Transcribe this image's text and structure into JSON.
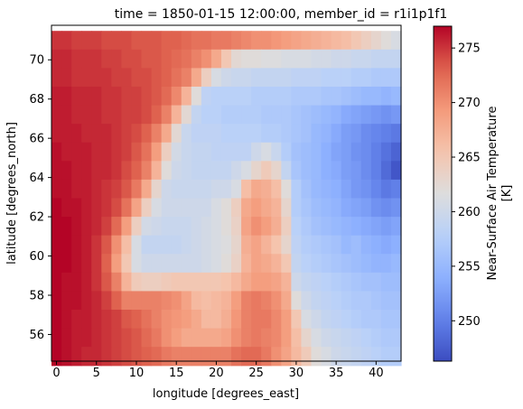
{
  "chart_data": {
    "type": "heatmap",
    "title": "time = 1850-01-15 12:00:00, member_id = r1i1p1f1",
    "xlabel": "longitude [degrees_east]",
    "ylabel": "latitude [degrees_north]",
    "colorbar_label": "Near-Surface Air Temperature\n[K]",
    "colormap": "coolwarm",
    "colorbar_ticks": [
      250,
      255,
      260,
      265,
      270,
      275
    ],
    "xticks": [
      0,
      5,
      10,
      15,
      20,
      25,
      30,
      35,
      40
    ],
    "yticks": [
      56,
      58,
      60,
      62,
      64,
      66,
      68,
      70
    ],
    "x_grid": {
      "start": 0,
      "step": 1.25,
      "count": 35
    },
    "y_grid": {
      "start": 71.0,
      "step": -0.9474,
      "count": 18
    },
    "xlim": [
      -0.625,
      43.125
    ],
    "ylim": [
      54.64,
      71.76
    ],
    "vmin": 246.3,
    "vmax": 277.0,
    "values": [
      [
        275,
        275,
        274.5,
        274.5,
        274.5,
        274,
        274,
        274,
        273.5,
        273.5,
        273.5,
        273,
        273,
        272.5,
        272,
        272,
        271.5,
        271.5,
        271,
        270.5,
        270,
        270,
        269.5,
        269,
        268.5,
        268,
        267.5,
        267,
        266.5,
        266,
        265,
        264,
        263,
        262,
        261
      ],
      [
        275.5,
        275.5,
        275,
        275,
        275,
        274.5,
        274.5,
        274,
        274,
        273.5,
        273.5,
        273,
        272.5,
        272,
        271,
        270,
        268,
        265,
        262.5,
        262,
        262,
        261.5,
        261.5,
        261,
        261,
        261,
        260.5,
        260.5,
        260,
        260,
        259.5,
        259.5,
        259,
        259,
        259
      ],
      [
        275.5,
        275.5,
        275,
        275,
        275,
        275,
        274.5,
        274.5,
        274,
        274,
        273.5,
        273,
        272,
        271,
        268,
        264,
        261,
        260,
        259.5,
        259.5,
        259,
        259,
        259,
        259,
        258.5,
        258.5,
        258.5,
        258,
        258,
        258,
        257.5,
        257.5,
        257,
        257,
        257
      ],
      [
        276,
        276,
        275.5,
        275.5,
        275.5,
        275,
        275,
        274.5,
        274.5,
        274,
        273.5,
        272.5,
        270.5,
        267,
        262,
        258.5,
        258,
        258,
        258,
        258,
        257.5,
        257.5,
        257.5,
        257.5,
        257,
        257,
        257,
        256.5,
        256.5,
        256,
        255.5,
        255,
        255,
        254.5,
        255
      ],
      [
        276,
        276,
        275.5,
        275.5,
        275.5,
        275,
        275,
        274.5,
        274.5,
        274,
        273,
        271,
        267,
        262.5,
        259,
        258,
        258,
        257.5,
        257.5,
        257.5,
        257.5,
        257,
        257,
        257,
        256.5,
        256,
        255.5,
        255,
        254.5,
        253.5,
        253,
        252.5,
        252,
        251.5,
        252
      ],
      [
        276,
        276,
        276,
        275.5,
        275.5,
        275.5,
        275,
        274.5,
        274,
        273,
        271,
        268,
        262.5,
        259.5,
        258.5,
        258.5,
        258.5,
        258,
        258,
        258,
        258,
        257.5,
        257.5,
        257,
        256.5,
        256,
        255,
        254.5,
        253.5,
        252.5,
        252,
        251,
        250.5,
        250,
        249.5
      ],
      [
        276.5,
        276,
        276,
        276,
        275.5,
        275.5,
        275,
        274.5,
        273.5,
        272,
        269,
        264,
        260.5,
        259.5,
        259,
        259,
        258.5,
        258.5,
        258.5,
        258.5,
        260,
        261,
        259.5,
        257.5,
        256,
        255.5,
        255,
        254,
        253,
        252.5,
        251.5,
        251,
        250,
        249,
        248
      ],
      [
        276.5,
        276.5,
        276,
        276,
        275.5,
        275.5,
        275,
        274,
        273,
        271,
        267,
        262,
        260,
        259.5,
        259,
        259,
        259,
        259,
        260,
        261,
        263,
        264.5,
        263,
        259,
        256.5,
        255.5,
        255,
        254,
        253.5,
        252.5,
        252,
        251,
        250,
        248.5,
        247
      ],
      [
        276.5,
        276.5,
        276,
        276,
        275.5,
        275,
        274.5,
        273.5,
        271.5,
        268,
        263,
        260,
        259.5,
        259.5,
        259.5,
        259.5,
        260,
        260,
        261,
        266,
        268,
        267.5,
        266,
        262,
        257.5,
        256,
        255,
        254.5,
        254,
        253,
        252,
        251.5,
        250.5,
        249.5,
        250
      ],
      [
        277,
        276.5,
        276.5,
        276,
        275.5,
        275,
        274,
        272,
        268.5,
        264,
        261,
        260,
        260,
        260,
        260,
        260,
        261,
        262,
        264,
        268,
        269,
        268,
        267,
        263,
        257.5,
        256.5,
        255.5,
        255,
        254.5,
        253.5,
        253,
        252.5,
        251.5,
        251,
        251.5
      ],
      [
        277,
        277,
        276.5,
        276,
        275.5,
        274.5,
        272.5,
        269,
        264,
        260.5,
        260,
        259.5,
        259.5,
        259.5,
        260,
        260.5,
        261,
        262,
        263.5,
        268.5,
        270,
        269,
        267.5,
        264,
        258,
        257,
        256,
        255.5,
        255,
        254.5,
        254,
        253.5,
        253,
        252.5,
        253
      ],
      [
        277,
        277,
        276.5,
        276,
        275,
        273.5,
        270,
        266,
        261,
        259,
        259,
        259,
        259,
        259.5,
        260,
        260.5,
        261,
        261.5,
        263,
        267.5,
        268.5,
        267,
        265.5,
        263,
        258.5,
        257.5,
        257,
        256.5,
        256,
        255,
        255.5,
        254.5,
        254,
        253.5,
        254
      ],
      [
        277,
        277,
        276.5,
        276,
        275,
        273,
        269,
        265,
        261,
        260,
        260,
        260,
        260,
        260,
        260,
        260.5,
        261,
        262,
        263.5,
        267,
        268.5,
        268,
        267,
        265,
        259,
        258,
        257.5,
        257,
        256.5,
        256,
        255.5,
        255,
        254.5,
        254.5,
        255
      ],
      [
        277,
        276.5,
        276.5,
        276,
        275,
        273.5,
        271,
        267,
        264.5,
        264,
        264,
        264.5,
        265,
        265,
        265,
        265,
        265,
        265.5,
        266.5,
        268,
        269,
        269,
        268.5,
        267,
        260,
        259,
        258.5,
        258,
        257.5,
        257,
        256.5,
        256,
        256,
        255.5,
        255.5
      ],
      [
        277,
        276.5,
        276.5,
        276,
        275.5,
        274.5,
        273,
        271,
        271,
        271,
        271,
        270.5,
        270,
        268.5,
        266.5,
        266,
        266.5,
        267,
        269,
        271,
        271.5,
        271,
        270,
        268,
        262,
        260,
        259,
        258.5,
        258,
        257.5,
        257,
        257,
        256.5,
        256,
        256
      ],
      [
        277,
        276.5,
        276,
        276,
        275.5,
        275,
        274.5,
        273.5,
        273,
        272,
        271,
        270,
        269.5,
        269,
        268,
        266.5,
        266.5,
        267.5,
        269.5,
        271,
        271.5,
        271.5,
        270.5,
        269,
        265,
        261,
        260,
        259,
        258.5,
        258,
        257.5,
        257,
        257,
        256.5,
        256.5
      ],
      [
        277,
        276.5,
        276,
        276,
        275.5,
        275,
        274.5,
        274,
        273.5,
        272.5,
        271.5,
        270,
        269,
        268,
        268,
        268,
        268,
        268.5,
        270,
        271,
        271.5,
        271,
        270.5,
        269,
        266,
        263,
        261,
        260,
        259.5,
        259,
        258.5,
        258,
        257.5,
        257,
        257
      ],
      [
        277,
        276.5,
        276,
        275.5,
        275.5,
        275,
        274.5,
        274,
        273.5,
        273,
        272.5,
        271.5,
        271,
        271,
        271,
        271,
        271,
        271,
        272,
        272.5,
        272.5,
        271.5,
        270,
        268.5,
        266.5,
        264.5,
        262,
        261,
        260,
        259.5,
        259,
        258.5,
        258,
        257.5,
        257.5
      ]
    ]
  }
}
